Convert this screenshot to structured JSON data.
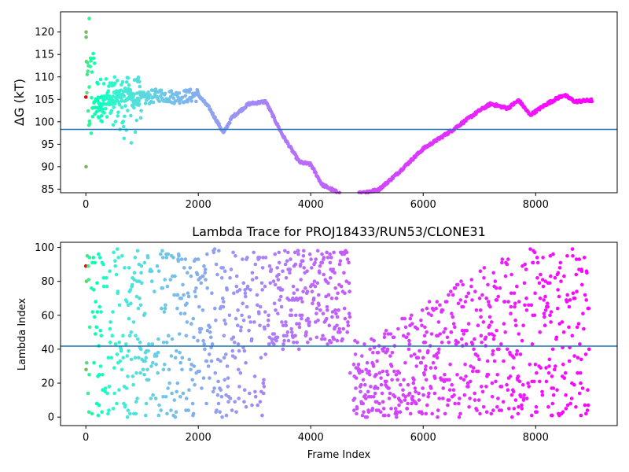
{
  "chart_data": [
    {
      "type": "scatter",
      "title": "",
      "xlabel": "",
      "ylabel": "ΔG (kT)",
      "xlim": [
        -450,
        9450
      ],
      "ylim": [
        84.2,
        124.5
      ],
      "xticks": [
        0,
        2000,
        4000,
        6000,
        8000
      ],
      "yticks": [
        85,
        90,
        95,
        100,
        105,
        110,
        115,
        120
      ],
      "xtick_labels": [
        "0",
        "2000",
        "4000",
        "6000",
        "8000"
      ],
      "ytick_labels": [
        "85",
        "90",
        "95",
        "100",
        "105",
        "110",
        "115",
        "120"
      ],
      "hline": 98.3,
      "hline_color": "#1f77b4",
      "colormap": "rainbow",
      "frames": 9000,
      "grid": false,
      "trace_keypoints": {
        "x": [
          200,
          400,
          700,
          1000,
          1300,
          1600,
          2000,
          2200,
          2450,
          2600,
          2900,
          3200,
          3500,
          3800,
          4000,
          4200,
          4600,
          4900,
          5200,
          5500,
          6000,
          6500,
          7000,
          7200,
          7500,
          7700,
          7900,
          8200,
          8500,
          8700,
          9000
        ],
        "y": [
          104,
          105,
          106,
          105,
          106,
          105.5,
          106,
          103,
          97.5,
          101,
          104,
          104.5,
          97,
          91,
          90.5,
          86,
          83.5,
          84.2,
          84.8,
          88,
          94,
          98,
          102.5,
          104,
          103,
          104.8,
          101.5,
          104,
          106,
          104.5,
          104.8
        ]
      }
    },
    {
      "type": "scatter",
      "title": "Lambda Trace for PROJ18433/RUN53/CLONE31",
      "xlabel": "Frame Index",
      "ylabel": "Lambda Index",
      "xlim": [
        -450,
        9450
      ],
      "ylim": [
        -5,
        103
      ],
      "xticks": [
        0,
        2000,
        4000,
        6000,
        8000
      ],
      "yticks": [
        0,
        20,
        40,
        60,
        80,
        100
      ],
      "xtick_labels": [
        "0",
        "2000",
        "4000",
        "6000",
        "8000"
      ],
      "ytick_labels": [
        "0",
        "20",
        "40",
        "60",
        "80",
        "100"
      ],
      "hline": 41.8,
      "hline_color": "#1f77b4",
      "colormap": "rainbow",
      "frames": 9000,
      "grid": false
    }
  ]
}
